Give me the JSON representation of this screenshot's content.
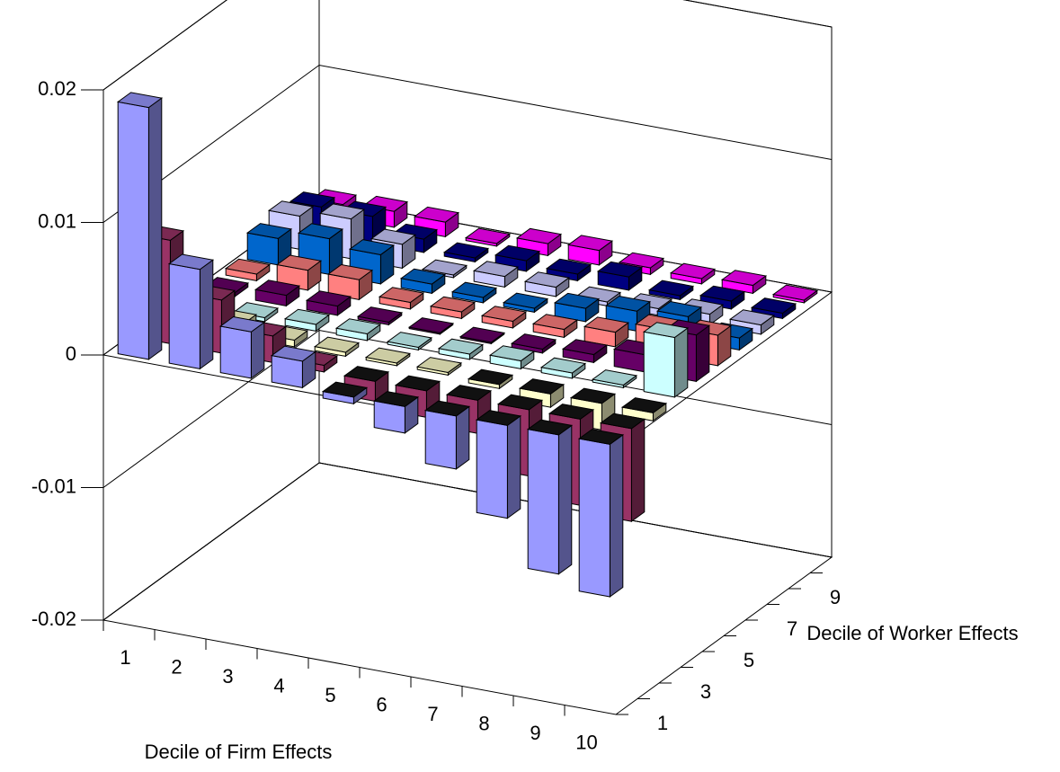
{
  "chart_data": {
    "type": "bar3d",
    "xlabel": "Decile of Firm Effects",
    "ylabel": "Decile of Worker Effects",
    "categories": [
      "1",
      "2",
      "3",
      "4",
      "5",
      "6",
      "7",
      "8",
      "9",
      "10"
    ],
    "depth_categories": [
      "1",
      null,
      "3",
      null,
      "5",
      null,
      "7",
      null,
      "9",
      null
    ],
    "zlim": [
      -0.02,
      0.02
    ],
    "zticks": [
      -0.02,
      -0.01,
      0,
      0.01,
      0.02
    ],
    "grid": true,
    "series": [
      {
        "color": "#9999ff",
        "values": [
          0.019,
          0.0075,
          0.0035,
          0.002,
          -0.0005,
          -0.002,
          -0.004,
          -0.007,
          -0.0105,
          -0.0115
        ]
      },
      {
        "color": "#993366",
        "values": [
          0.0078,
          0.004,
          0.002,
          0.0005,
          -0.0015,
          -0.002,
          -0.0025,
          -0.005,
          -0.0065,
          -0.007
        ]
      },
      {
        "color": "#ffffcc",
        "values": [
          0.004,
          0.001,
          0.0005,
          0.0003,
          0.0002,
          0.0002,
          -0.0003,
          -0.001,
          -0.002,
          -0.0006
        ]
      },
      {
        "color": "#ccffff",
        "values": [
          0.0005,
          0.0003,
          0.0005,
          0.0005,
          0.0002,
          0.0004,
          0.0006,
          0.0004,
          0.0002,
          0.0045
        ]
      },
      {
        "color": "#660066",
        "values": [
          0.0003,
          0.0008,
          0.0007,
          0.0002,
          0.0001,
          0.0001,
          0.0003,
          0.0006,
          0.0013,
          0.0035
        ]
      },
      {
        "color": "#ff8080",
        "values": [
          0.0005,
          0.0015,
          0.0015,
          0.0005,
          0.0005,
          0.0005,
          0.0006,
          0.0011,
          0.002,
          0.0023
        ]
      },
      {
        "color": "#0066cc",
        "values": [
          0.002,
          0.0027,
          0.0022,
          0.0007,
          0.0004,
          0.0003,
          0.001,
          0.0015,
          0.0018,
          0.0009
        ]
      },
      {
        "color": "#ccccff",
        "values": [
          0.0025,
          0.003,
          0.0018,
          0.0002,
          0.0008,
          0.0007,
          0.0003,
          0.0005,
          0.0008,
          0.0007
        ]
      },
      {
        "color": "#000080",
        "values": [
          0.002,
          0.002,
          0.001,
          0.0003,
          0.0008,
          0.0005,
          0.001,
          0.0003,
          0.0006,
          0.0004
        ]
      },
      {
        "color": "#ff00ff",
        "values": [
          0.001,
          0.0012,
          0.0011,
          0.0002,
          0.0009,
          0.0011,
          0.0005,
          0.0004,
          0.0006,
          0.0002
        ]
      }
    ]
  }
}
